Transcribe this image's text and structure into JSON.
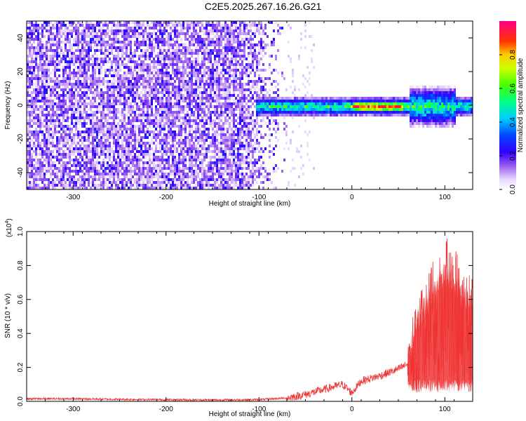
{
  "title": "C2E5.2025.267.16.26.G21",
  "colors": {
    "snr_line": "#ee3333",
    "axis": "#000000",
    "background": "#ffffff"
  },
  "chart_data": [
    {
      "type": "heatmap",
      "panel": "spectrogram",
      "xlabel": "Height of straight line (km)",
      "ylabel": "Frequency (Hz)",
      "xlim": [
        -350,
        130
      ],
      "ylim": [
        -50,
        50
      ],
      "xticks": [
        -300,
        -200,
        -100,
        0,
        100
      ],
      "xtick_labels": [
        "-300",
        "-200",
        "-100",
        "0",
        "100"
      ],
      "yticks": [
        -40,
        -20,
        0,
        20,
        40
      ],
      "ytick_labels": [
        "-40",
        "-20",
        "0",
        "20",
        "40"
      ],
      "colorbar": {
        "label": "Normalized spectral amplitude",
        "range": [
          0,
          1
        ],
        "ticks": [
          0.0,
          0.2,
          0.4,
          0.6,
          0.8
        ],
        "tick_labels": [
          "0.0",
          "0.2",
          "0.4",
          "0.6",
          "0.8"
        ],
        "colormap": "rainbow (purple-blue-cyan-green-yellow-red-magenta)"
      },
      "description_values": {
        "noise_region_x": [
          -350,
          -70
        ],
        "noise_amplitude": 0.1,
        "carrier_region_x": [
          -105,
          130
        ],
        "carrier_frequency_hz": 0,
        "carrier_peak_x": [
          0,
          55
        ],
        "carrier_peak_amplitude": 0.95
      }
    },
    {
      "type": "line",
      "panel": "snr",
      "xlabel": "Height of straight line (km)",
      "ylabel": "SNR (10 * v/v)",
      "y_multiplier_label": "(x10",
      "y_multiplier_exponent": "4",
      "y_multiplier_close": ")",
      "xlim": [
        -350,
        130
      ],
      "ylim": [
        0,
        1.0
      ],
      "xticks": [
        -300,
        -200,
        -100,
        0,
        100
      ],
      "xtick_labels": [
        "-300",
        "-200",
        "-100",
        "0",
        "100"
      ],
      "yticks": [
        0.0,
        0.2,
        0.4,
        0.6,
        0.8,
        1.0
      ],
      "ytick_labels": [
        "0.0",
        "0.2",
        "0.4",
        "0.6",
        "0.8",
        "1.0"
      ],
      "series": [
        {
          "name": "SNR",
          "x": [
            -350,
            -300,
            -250,
            -200,
            -150,
            -100,
            -70,
            -50,
            -30,
            -10,
            0,
            10,
            30,
            50,
            60,
            65,
            70,
            80,
            90,
            100,
            110,
            120,
            130
          ],
          "y": [
            0.015,
            0.015,
            0.012,
            0.01,
            0.008,
            0.01,
            0.02,
            0.04,
            0.07,
            0.1,
            0.05,
            0.12,
            0.15,
            0.19,
            0.22,
            0.35,
            0.45,
            0.55,
            0.65,
            0.75,
            0.7,
            0.6,
            0.55
          ]
        }
      ]
    }
  ]
}
